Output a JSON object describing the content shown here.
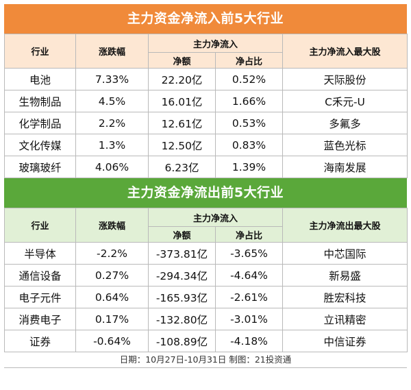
{
  "inflow": {
    "title": "主力资金净流入前5大行业",
    "headers": {
      "industry": "行业",
      "change": "涨跌幅",
      "main_flow": "主力净流入",
      "net_amount": "净额",
      "net_ratio": "净占比",
      "top_stock": "主力净流入最大股"
    },
    "rows": [
      {
        "industry": "电池",
        "change": "7.33%",
        "net": "22.20亿",
        "ratio": "0.52%",
        "stock": "天际股份"
      },
      {
        "industry": "生物制品",
        "change": "4.5%",
        "net": "16.01亿",
        "ratio": "1.66%",
        "stock": "C禾元-U"
      },
      {
        "industry": "化学制品",
        "change": "2.2%",
        "net": "12.61亿",
        "ratio": "0.53%",
        "stock": "多氟多"
      },
      {
        "industry": "文化传媒",
        "change": "1.3%",
        "net": "12.50亿",
        "ratio": "0.83%",
        "stock": "蓝色光标"
      },
      {
        "industry": "玻璃玻纤",
        "change": "4.06%",
        "net": "6.23亿",
        "ratio": "1.39%",
        "stock": "海南发展"
      }
    ]
  },
  "outflow": {
    "title": "主力资金净流出前5大行业",
    "headers": {
      "industry": "行业",
      "change": "涨跌幅",
      "main_flow": "主力净流入",
      "net_amount": "净额",
      "net_ratio": "净占比",
      "top_stock": "主力净流出最大股"
    },
    "rows": [
      {
        "industry": "半导体",
        "change": "-2.2%",
        "net": "-373.81亿",
        "ratio": "-3.65%",
        "stock": "中芯国际"
      },
      {
        "industry": "通信设备",
        "change": "0.27%",
        "net": "-294.34亿",
        "ratio": "-4.64%",
        "stock": "新易盛"
      },
      {
        "industry": "电子元件",
        "change": "0.64%",
        "net": "-165.93亿",
        "ratio": "-2.61%",
        "stock": "胜宏科技"
      },
      {
        "industry": "消费电子",
        "change": "0.17%",
        "net": "-132.80亿",
        "ratio": "-3.01%",
        "stock": "立讯精密"
      },
      {
        "industry": "证券",
        "change": "-0.64%",
        "net": "-108.89亿",
        "ratio": "-4.18%",
        "stock": "中信证券"
      }
    ]
  },
  "footer": "日期：10月27日-10月31日 制图：21投资通",
  "colors": {
    "orange_banner": "#f08a3a",
    "orange_header": "#fde7d3",
    "green_banner": "#5aa83a",
    "green_header": "#e1f0d6"
  }
}
